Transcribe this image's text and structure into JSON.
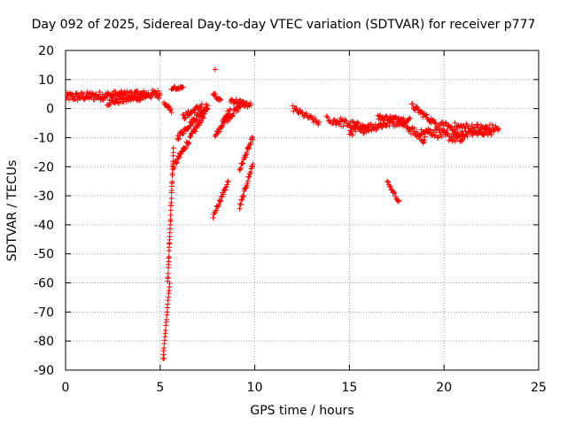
{
  "chart_data": {
    "type": "scatter",
    "title": "Day 092 of 2025, Sidereal Day-to-day VTEC variation (SDTVAR) for receiver p777",
    "xlabel": "GPS time / hours",
    "ylabel": "SDTVAR / TECUs",
    "xlim": [
      0,
      25
    ],
    "ylim": [
      -90,
      20
    ],
    "xticks": [
      "0",
      "5",
      "10",
      "15",
      "20",
      "25"
    ],
    "yticks": [
      "20",
      "10",
      "0",
      "-10",
      "-20",
      "-30",
      "-40",
      "-50",
      "-60",
      "-70",
      "-80",
      "-90"
    ],
    "grid": true,
    "marker": "+",
    "color": "#ff0000",
    "series": [
      {
        "name": "SDTVAR",
        "arcs": [
          {
            "x0": 0.0,
            "x1": 5.0,
            "y0": 4,
            "y1": 5,
            "spread": 3,
            "n": 160
          },
          {
            "x0": 2.2,
            "x1": 4.2,
            "y0": 2,
            "y1": 4,
            "spread": 2,
            "n": 40
          },
          {
            "x0": 5.2,
            "x1": 5.6,
            "y0": 2,
            "y1": -1,
            "spread": 1.5,
            "n": 12
          },
          {
            "x0": 5.6,
            "x1": 6.2,
            "y0": 7,
            "y1": 7,
            "spread": 1,
            "n": 15
          },
          {
            "x0": 5.15,
            "x1": 5.5,
            "y0": -86,
            "y1": -60,
            "spread": 0.5,
            "n": 22
          },
          {
            "x0": 5.4,
            "x1": 5.7,
            "y0": -60,
            "y1": -14,
            "spread": 1.5,
            "n": 40
          },
          {
            "x0": 5.7,
            "x1": 7.5,
            "y0": -20,
            "y1": 0,
            "spread": 2,
            "n": 60
          },
          {
            "x0": 5.9,
            "x1": 7.5,
            "y0": -10,
            "y1": 1,
            "spread": 2,
            "n": 50
          },
          {
            "x0": 6.2,
            "x1": 7.2,
            "y0": -3,
            "y1": 1,
            "spread": 2,
            "n": 30
          },
          {
            "x0": 7.8,
            "x1": 8.2,
            "y0": 5,
            "y1": 2,
            "spread": 2,
            "n": 12
          },
          {
            "x0": 7.8,
            "x1": 8.6,
            "y0": -37,
            "y1": -25,
            "spread": 1.5,
            "n": 25
          },
          {
            "x0": 7.9,
            "x1": 8.7,
            "y0": -10,
            "y1": 0,
            "spread": 2,
            "n": 25
          },
          {
            "x0": 8.3,
            "x1": 9.4,
            "y0": -5,
            "y1": 2,
            "spread": 2,
            "n": 30
          },
          {
            "x0": 8.7,
            "x1": 9.8,
            "y0": 3,
            "y1": 1,
            "spread": 2,
            "n": 25
          },
          {
            "x0": 9.2,
            "x1": 9.9,
            "y0": -34,
            "y1": -19,
            "spread": 1.5,
            "n": 25
          },
          {
            "x0": 9.2,
            "x1": 9.9,
            "y0": -21,
            "y1": -10,
            "spread": 1.5,
            "n": 25
          },
          {
            "x0": 12.0,
            "x1": 13.4,
            "y0": 0,
            "y1": -5,
            "spread": 2,
            "n": 30
          },
          {
            "x0": 13.8,
            "x1": 14.0,
            "y0": -3,
            "y1": -5,
            "spread": 1,
            "n": 5
          },
          {
            "x0": 14.1,
            "x1": 16.0,
            "y0": -4,
            "y1": -7,
            "spread": 3,
            "n": 50
          },
          {
            "x0": 15.0,
            "x1": 17.8,
            "y0": -8,
            "y1": -4,
            "spread": 3,
            "n": 70
          },
          {
            "x0": 16.5,
            "x1": 18.2,
            "y0": -3,
            "y1": -4,
            "spread": 2,
            "n": 40
          },
          {
            "x0": 17.0,
            "x1": 17.6,
            "y0": -25,
            "y1": -32,
            "spread": 1,
            "n": 15
          },
          {
            "x0": 17.8,
            "x1": 19.0,
            "y0": -5,
            "y1": -11,
            "spread": 3,
            "n": 35
          },
          {
            "x0": 18.3,
            "x1": 19.5,
            "y0": 1,
            "y1": -5,
            "spread": 2,
            "n": 30
          },
          {
            "x0": 18.8,
            "x1": 21.0,
            "y0": -7,
            "y1": -11,
            "spread": 3,
            "n": 55
          },
          {
            "x0": 19.5,
            "x1": 22.9,
            "y0": -6,
            "y1": -7,
            "spread": 3,
            "n": 80
          },
          {
            "x0": 20.5,
            "x1": 22.5,
            "y0": -9,
            "y1": -8,
            "spread": 2,
            "n": 45
          }
        ],
        "points": [
          {
            "x": 7.9,
            "y": 13.5
          },
          {
            "x": 5.2,
            "y": -86
          },
          {
            "x": 17.6,
            "y": -32
          }
        ]
      }
    ]
  }
}
